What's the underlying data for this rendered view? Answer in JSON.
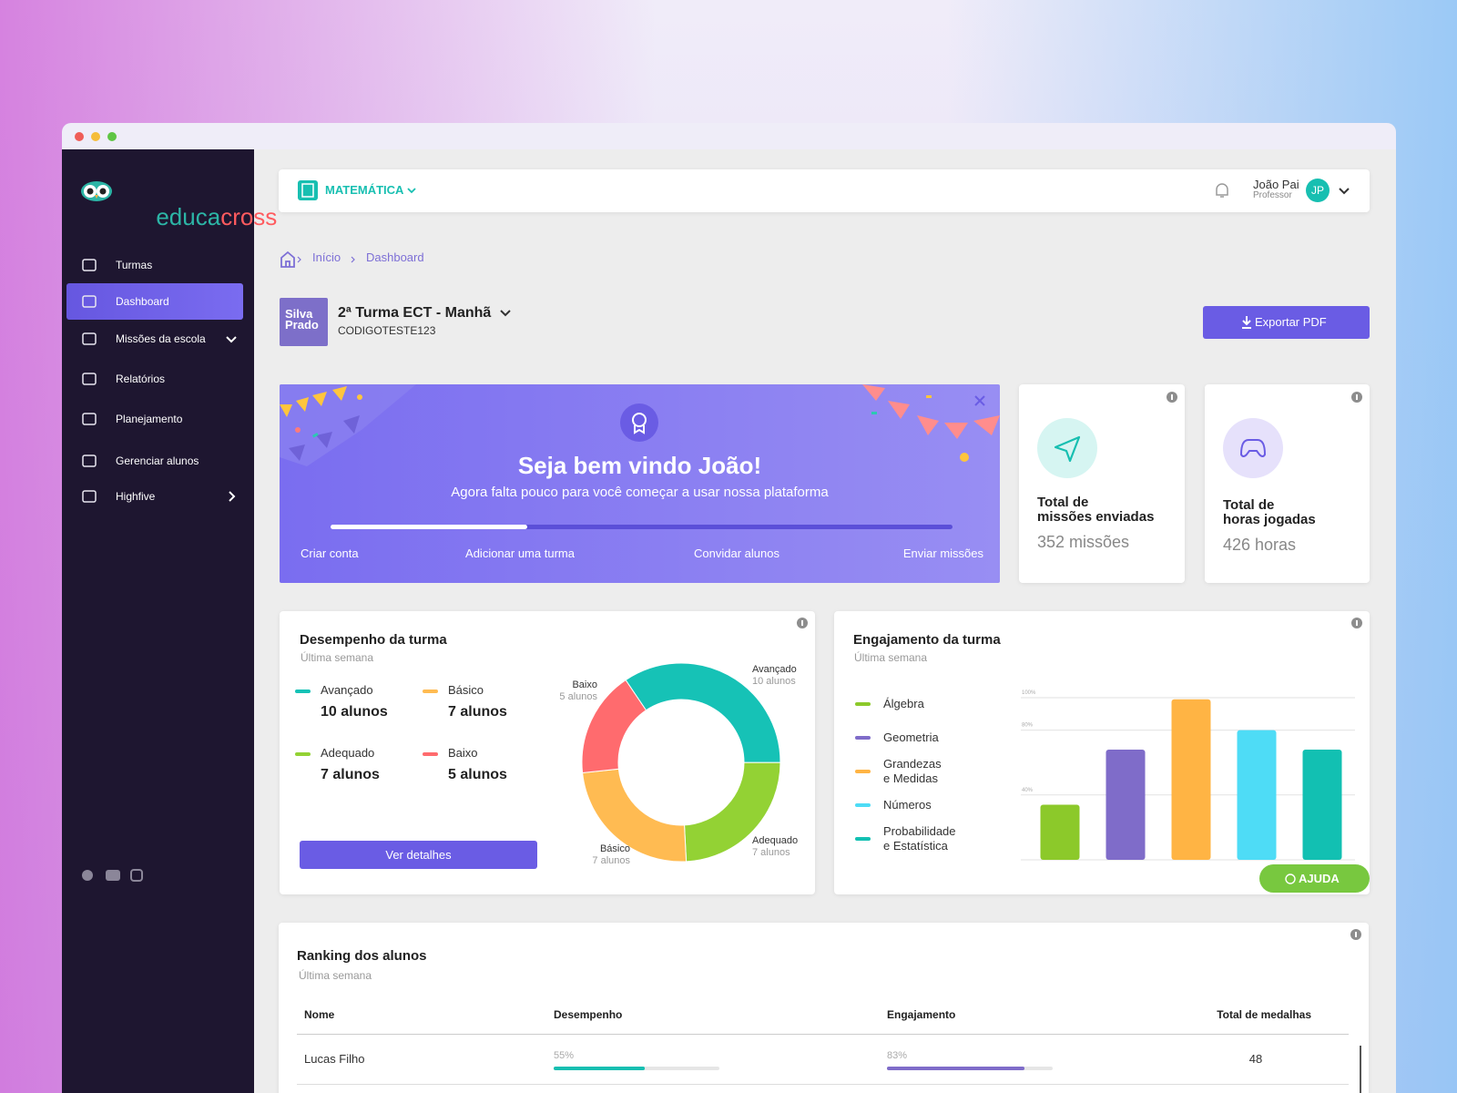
{
  "sidebar": {
    "logo": [
      "educa",
      "cross"
    ],
    "menu": [
      "Turmas",
      "Dashboard",
      "Missões da escola",
      "Relatórios",
      "Planejamento",
      "Gerenciar alunos",
      "Highfive"
    ]
  },
  "topbar": {
    "subject": "MATEMÁTICA",
    "user_name": "João Pai",
    "user_role": "Professor",
    "user_initials": "JP"
  },
  "breadcrumb": [
    "Início",
    "Dashboard"
  ],
  "class_header": {
    "school_logo": "Silva\nPrado",
    "class_name": "2ª Turma ECT - Manhã",
    "code": "CODIGOTESTE123",
    "export_button": "Exportar PDF"
  },
  "welcome": {
    "title": "Seja bem vindo João!",
    "subtitle": "Agora falta pouco para você começar a usar nossa plataforma",
    "steps": [
      "Criar conta",
      "Adicionar uma turma",
      "Convidar alunos",
      "Enviar missões"
    ]
  },
  "stats": [
    {
      "title": "Total de\nmissões enviadas",
      "value": "352 missões"
    },
    {
      "title": "Total de\nhoras jogadas",
      "value": "426 horas"
    }
  ],
  "chart_data": [
    {
      "type": "pie",
      "title": "Desempenho da turma",
      "subtitle": "Última semana",
      "categories": [
        "Avançado",
        "Adequado",
        "Básico",
        "Baixo"
      ],
      "values": [
        10,
        7,
        7,
        5
      ],
      "value_labels": [
        "10 alunos",
        "7 alunos",
        "7 alunos",
        "5 alunos"
      ],
      "colors": [
        "#16c2b6",
        "#93d234",
        "#ffbb52",
        "#ff6b6e"
      ],
      "button": "Ver detalhes"
    },
    {
      "type": "bar",
      "title": "Engajamento da turma",
      "subtitle": "Última semana",
      "categories": [
        "Álgebra",
        "Geometria",
        "Grandezas\ne Medidas",
        "Números",
        "Probabilidade\ne Estatística"
      ],
      "values": [
        34,
        68,
        99,
        80,
        68
      ],
      "colors": [
        "#8cc92a",
        "#7f6cc9",
        "#ffb444",
        "#4edcf6",
        "#12c0b2"
      ],
      "ylim": [
        0,
        100
      ],
      "yticks": [
        {
          "value": 40,
          "label": "40%"
        },
        {
          "value": 80,
          "label": "80%"
        },
        {
          "value": 100,
          "label": "100%"
        }
      ],
      "grid": true,
      "button": "AJUDA"
    }
  ],
  "ranking": {
    "title": "Ranking dos alunos",
    "subtitle": "Última semana",
    "columns": [
      "Nome",
      "Desempenho",
      "Engajamento",
      "Total de medalhas"
    ],
    "rows": [
      {
        "name": "Lucas Filho",
        "performance": {
          "value": 55,
          "label": "55%"
        },
        "engagement": {
          "value": 83,
          "label": "83%"
        },
        "medals": 48
      }
    ]
  }
}
